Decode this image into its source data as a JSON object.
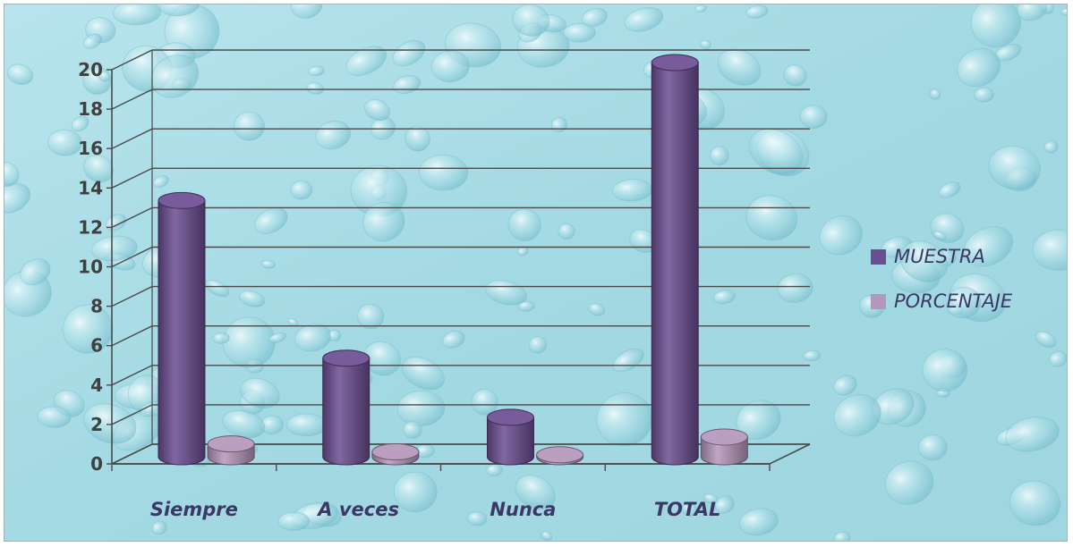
{
  "chart_data": {
    "type": "bar",
    "categories": [
      "Siempre",
      "A veces",
      "Nunca",
      "TOTAL"
    ],
    "series": [
      {
        "name": "MUESTRA",
        "values": [
          13,
          5,
          2,
          20
        ],
        "color": "#6b4d91"
      },
      {
        "name": "PORCENTAJE",
        "values": [
          0.65,
          0.25,
          0.1,
          1
        ],
        "color": "#b597bb"
      }
    ],
    "ylim": [
      0,
      20
    ],
    "yticks": [
      "0",
      "2",
      "4",
      "6",
      "8",
      "10",
      "12",
      "14",
      "16",
      "18",
      "20"
    ],
    "grid": true,
    "legend": "right",
    "style": "3d-cylinder",
    "background": "#a9dde6"
  }
}
